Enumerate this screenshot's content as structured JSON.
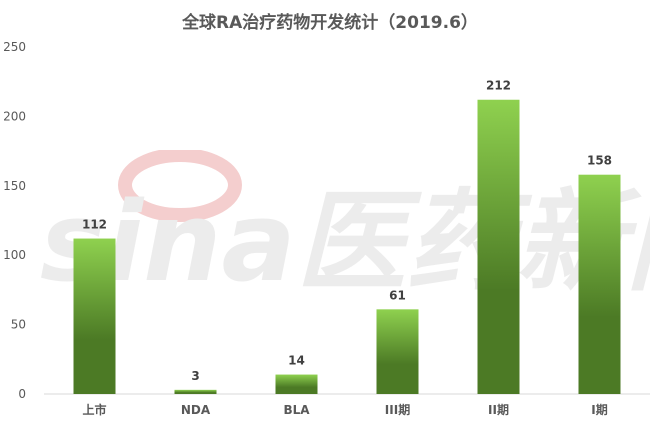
{
  "chart_data": {
    "type": "bar",
    "title": "全球RA治疗药物开发统计（2019.6）",
    "categories": [
      "上市",
      "NDA",
      "BLA",
      "III期",
      "II期",
      "I期"
    ],
    "values": [
      112,
      3,
      14,
      61,
      212,
      158
    ],
    "ylim": [
      0,
      250
    ],
    "yticks": [
      0,
      50,
      100,
      150,
      200,
      250
    ],
    "grid": false,
    "legend": "none",
    "data_labels": true,
    "colors": {
      "bar_top": "#8fd14f",
      "bar_bottom": "#4c7a25",
      "axis_text": "#595959",
      "label_text": "#404040",
      "axis_line": "#d9d9d9",
      "watermark": "#eaeaea",
      "watermark_logo": "#f3c9c9"
    }
  },
  "watermark": {
    "text": "sina医药新闻"
  }
}
